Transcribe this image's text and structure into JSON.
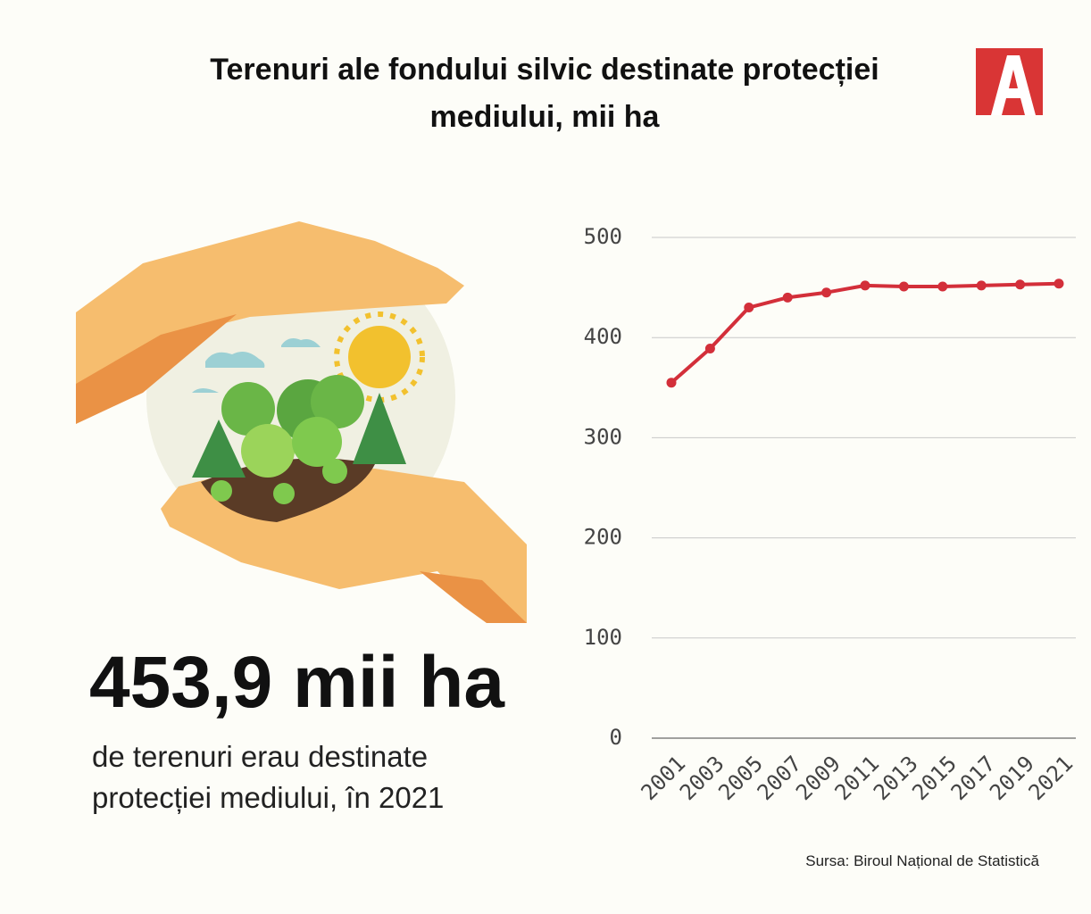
{
  "title": "Terenuri ale fondului silvic destinate protecției mediului, mii ha",
  "highlight": "453,9 mii ha",
  "highlight_caption": "de terenuri erau destinate protecției mediului, în 2021",
  "source": "Sursa: Biroul Național de Statistică",
  "chart_data": {
    "type": "line",
    "x": [
      2001,
      2003,
      2005,
      2007,
      2009,
      2011,
      2013,
      2015,
      2017,
      2019,
      2021
    ],
    "values": [
      355,
      389,
      430,
      440,
      445,
      452,
      451,
      451,
      452,
      453,
      453.9
    ],
    "color": "#d32f3a",
    "ylim": [
      0,
      500
    ],
    "yticks": [
      0,
      100,
      200,
      300,
      400,
      500
    ],
    "grid": true
  }
}
